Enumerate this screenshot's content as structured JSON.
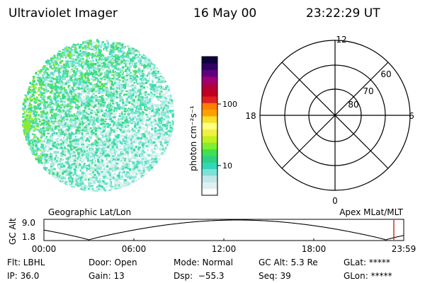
{
  "header": {
    "instrument": "Ultraviolet Imager",
    "date": "16 May 00",
    "time": "23:22:29 UT"
  },
  "colorbar": {
    "unit_label": "photon cm⁻²s⁻¹",
    "tick_labels": [
      "100",
      "10"
    ],
    "colors": [
      "#ffffff",
      "#e0f0f0",
      "#c0e8e8",
      "#80e0d8",
      "#30d8b8",
      "#30d080",
      "#40e050",
      "#80ee30",
      "#c0f020",
      "#f0f040",
      "#ffff80",
      "#f8e030",
      "#ffa000",
      "#ff8000",
      "#e02020",
      "#c00020",
      "#b00040",
      "#a00070",
      "#600080",
      "#300060",
      "#100040"
    ]
  },
  "polar": {
    "mlt_labels": {
      "top": "12",
      "bottom": "0",
      "left": "18",
      "right": "6"
    },
    "lat_labels": [
      "60",
      "70",
      "80"
    ]
  },
  "alt_plot": {
    "left_caption": "Geographic Lat/Lon",
    "right_caption": "Apex MLat/MLT",
    "axis_label": "GC Alt",
    "y_ticks": [
      "9.0",
      "1.8"
    ],
    "x_ticks": [
      "00:00",
      "06:00",
      "12:00",
      "18:00",
      "23:59"
    ],
    "curve_color": "#000000",
    "marker_color": "#c00000"
  },
  "info": {
    "filter": "Flt: LBHL",
    "ip": "IP: 36.0",
    "door": "Door: Open",
    "gain": "Gain: 13",
    "mode": "Mode: Normal",
    "dsp": "Dsp:  −55.3",
    "gc_alt": "GC Alt: 5.3 Re",
    "seq": "Seq: 39",
    "glat": "GLat: *****",
    "glon": "GLon: *****"
  }
}
